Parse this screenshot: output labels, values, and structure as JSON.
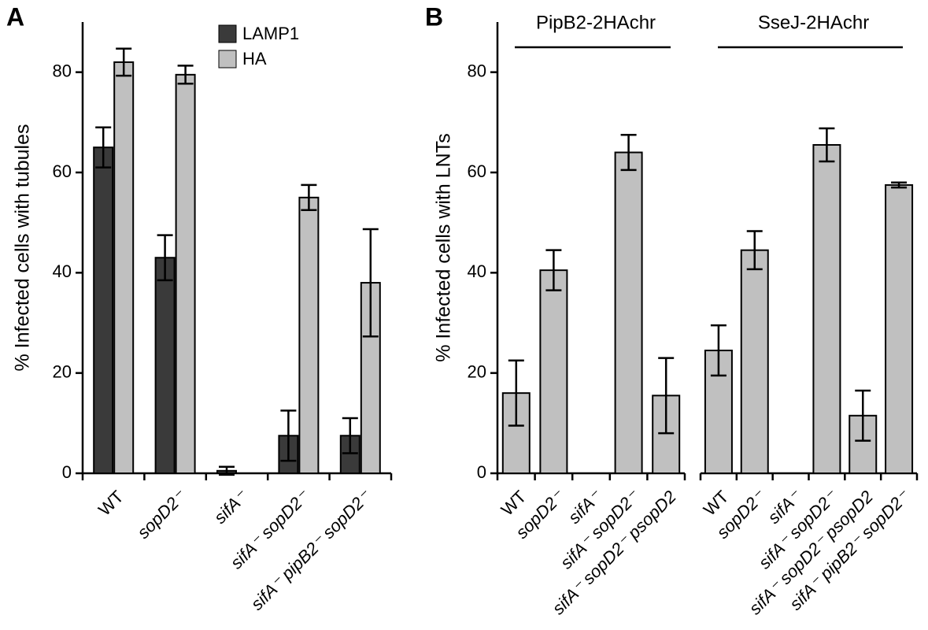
{
  "chart_data": [
    {
      "type": "grouped-bar",
      "panel": "A",
      "y_label": "% Infected cells with tubules",
      "categories": [
        "WT",
        "sopD2⁻",
        "sifA⁻",
        "sifA⁻ sopD2⁻",
        "sifA⁻ pipB2⁻ sopD2⁻"
      ],
      "series": [
        {
          "name": "LAMP1",
          "color": "#3a3a3a",
          "values": [
            65,
            43,
            0.5,
            7.5,
            7.5
          ],
          "errors": [
            4,
            4.5,
            0.8,
            5,
            3.5
          ]
        },
        {
          "name": "HA",
          "color": "#c0c0c0",
          "values": [
            82,
            79.5,
            null,
            55,
            38
          ],
          "errors": [
            2.7,
            1.8,
            null,
            2.5,
            10.7
          ]
        }
      ],
      "ylim": [
        0,
        90
      ],
      "yticks": [
        0,
        20,
        40,
        60,
        80
      ]
    },
    {
      "type": "grouped-panel",
      "panel": "B",
      "y_label": "% Infected cells with LNTs",
      "color": "#c0c0c0",
      "groups": [
        {
          "label": "PipB2-2HAchr",
          "categories": [
            "WT",
            "sopD2⁻",
            "sifA⁻",
            "sifA⁻ sopD2⁻",
            "sifA⁻ sopD2⁻ psopD2"
          ],
          "values": [
            16,
            40.5,
            null,
            64,
            15.5
          ],
          "errors": [
            6.5,
            4,
            null,
            3.5,
            7.5
          ]
        },
        {
          "label": "SseJ-2HAchr",
          "categories": [
            "WT",
            "sopD2⁻",
            "sifA⁻",
            "sifA⁻ sopD2⁻",
            "sifA⁻ sopD2⁻ psopD2",
            "sifA⁻ pipB2⁻ sopD2⁻"
          ],
          "values": [
            24.5,
            44.5,
            null,
            65.5,
            11.5,
            57.5
          ],
          "errors": [
            5,
            3.8,
            null,
            3.3,
            5,
            0.5
          ]
        }
      ],
      "ylim": [
        0,
        90
      ],
      "yticks": [
        0,
        20,
        40,
        60,
        80
      ]
    }
  ]
}
